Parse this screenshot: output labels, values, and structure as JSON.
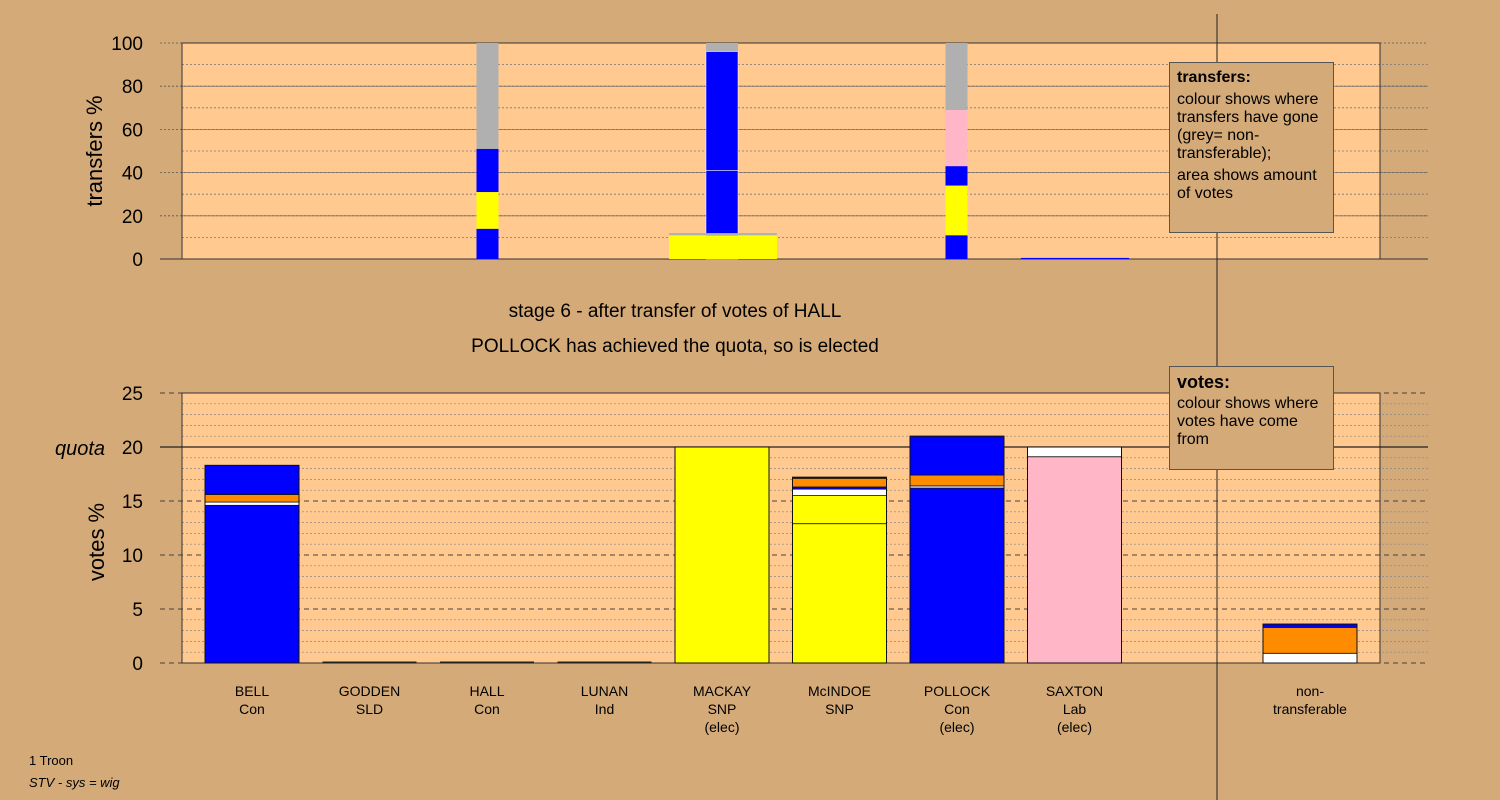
{
  "chart_data": [
    {
      "type": "bar",
      "name": "transfers",
      "ylabel": "transfers %",
      "ylim": [
        0,
        100
      ],
      "yticks": [
        0,
        20,
        40,
        60,
        80,
        100
      ],
      "categories": [
        "BELL",
        "GODDEN",
        "HALL",
        "LUNAN",
        "MACKAY",
        "McINDOE",
        "POLLOCK",
        "SAXTON",
        "non-transferable"
      ],
      "stacks": [
        {
          "category": "GODDEN",
          "width": "narrow",
          "segments": [
            {
              "color": "#0000ff",
              "value": 14
            },
            {
              "color": "#ffff00",
              "value": 17
            },
            {
              "color": "#0000ff",
              "value": 20
            },
            {
              "color": "#b0b0b0",
              "value": 49
            }
          ]
        },
        {
          "category": "HALL",
          "width": "medium",
          "segments": [
            {
              "color": "#0000ff",
              "value": 41
            },
            {
              "color": "#0000ff",
              "value": 55
            },
            {
              "color": "#b0b0b0",
              "value": 4
            }
          ]
        },
        {
          "category": "LUNAN",
          "width": "narrow",
          "segments": [
            {
              "color": "#0000ff",
              "value": 11
            },
            {
              "color": "#ffff00",
              "value": 23
            },
            {
              "color": "#0000ff",
              "value": 9
            },
            {
              "color": "#ffb6c6",
              "value": 26
            },
            {
              "color": "#b0b0b0",
              "value": 31
            }
          ]
        },
        {
          "category": "MACKAY",
          "width": "full",
          "segments": [
            {
              "color": "#ffff00",
              "value": 11
            },
            {
              "color": "#b0b0b0",
              "value": 1
            }
          ]
        },
        {
          "category": "SAXTON",
          "width": "full",
          "segments": [
            {
              "color": "#0000ff",
              "value": 0.5
            }
          ]
        }
      ]
    },
    {
      "type": "bar",
      "name": "votes",
      "ylabel": "votes %",
      "ylim": [
        0,
        25
      ],
      "yticks": [
        0,
        5,
        10,
        15,
        20,
        25
      ],
      "quota": 20,
      "quota_label": "quota",
      "categories": [
        "BELL",
        "GODDEN",
        "HALL",
        "LUNAN",
        "MACKAY",
        "McINDOE",
        "POLLOCK",
        "SAXTON",
        "non-transferable"
      ],
      "stacks": [
        {
          "category": "BELL",
          "segments": [
            {
              "color": "#0000ff",
              "value": 14.6
            },
            {
              "color": "#ffffff",
              "value": 0.3
            },
            {
              "color": "#ff8c00",
              "value": 0.7
            },
            {
              "color": "#0000ff",
              "value": 2.7
            }
          ]
        },
        {
          "category": "MACKAY",
          "segments": [
            {
              "color": "#ffff00",
              "value": 20
            }
          ]
        },
        {
          "category": "McINDOE",
          "segments": [
            {
              "color": "#ffff00",
              "value": 12.9
            },
            {
              "color": "#ffff00",
              "value": 2.6
            },
            {
              "color": "#ffffff",
              "value": 0.6
            },
            {
              "color": "#0000ff",
              "value": 0.2
            },
            {
              "color": "#ff8c00",
              "value": 0.8
            },
            {
              "color": "#0000ff",
              "value": 0.1
            }
          ]
        },
        {
          "category": "POLLOCK",
          "segments": [
            {
              "color": "#0000ff",
              "value": 16.2
            },
            {
              "color": "#ffffff",
              "value": 0.2
            },
            {
              "color": "#ff8c00",
              "value": 1.0
            },
            {
              "color": "#0000ff",
              "value": 3.6
            }
          ]
        },
        {
          "category": "SAXTON",
          "segments": [
            {
              "color": "#ffb6c6",
              "value": 19.1
            },
            {
              "color": "#ffffff",
              "value": 0.9
            }
          ]
        },
        {
          "category": "non-transferable",
          "segments": [
            {
              "color": "#ffffff",
              "value": 0.9
            },
            {
              "color": "#ff8c00",
              "value": 2.4
            },
            {
              "color": "#0000ff",
              "value": 0.3
            }
          ]
        }
      ]
    }
  ],
  "candidates": [
    {
      "name": "BELL",
      "party": "Con",
      "status": ""
    },
    {
      "name": "GODDEN",
      "party": "SLD",
      "status": ""
    },
    {
      "name": "HALL",
      "party": "Con",
      "status": ""
    },
    {
      "name": "LUNAN",
      "party": "Ind",
      "status": ""
    },
    {
      "name": "MACKAY",
      "party": "SNP",
      "status": "(elec)"
    },
    {
      "name": "McINDOE",
      "party": "SNP",
      "status": ""
    },
    {
      "name": "POLLOCK",
      "party": "Con",
      "status": "(elec)"
    },
    {
      "name": "SAXTON",
      "party": "Lab",
      "status": "(elec)"
    }
  ],
  "nontransferable_label": [
    "non-",
    "transferable"
  ],
  "stage": {
    "line1": "stage 6 - after transfer of votes of HALL",
    "line2": "POLLOCK has achieved the quota, so is elected"
  },
  "legend_transfers": {
    "title": "transfers:",
    "text1": "colour shows where transfers have gone (grey= non-transferable);",
    "text2": "area shows amount of votes"
  },
  "legend_votes": {
    "title": "votes:",
    "text1": "colour shows where votes have come from"
  },
  "footnote": {
    "line1": "1 Troon",
    "line2": "STV - sys = wig"
  },
  "colors": {
    "background": "#d4aa78",
    "plot_background": "#ffc990",
    "con": "#0000ff",
    "snp": "#ffff00",
    "lab": "#ffb6c6",
    "sld": "#ff8c00",
    "nontransferable": "#b0b0b0"
  }
}
